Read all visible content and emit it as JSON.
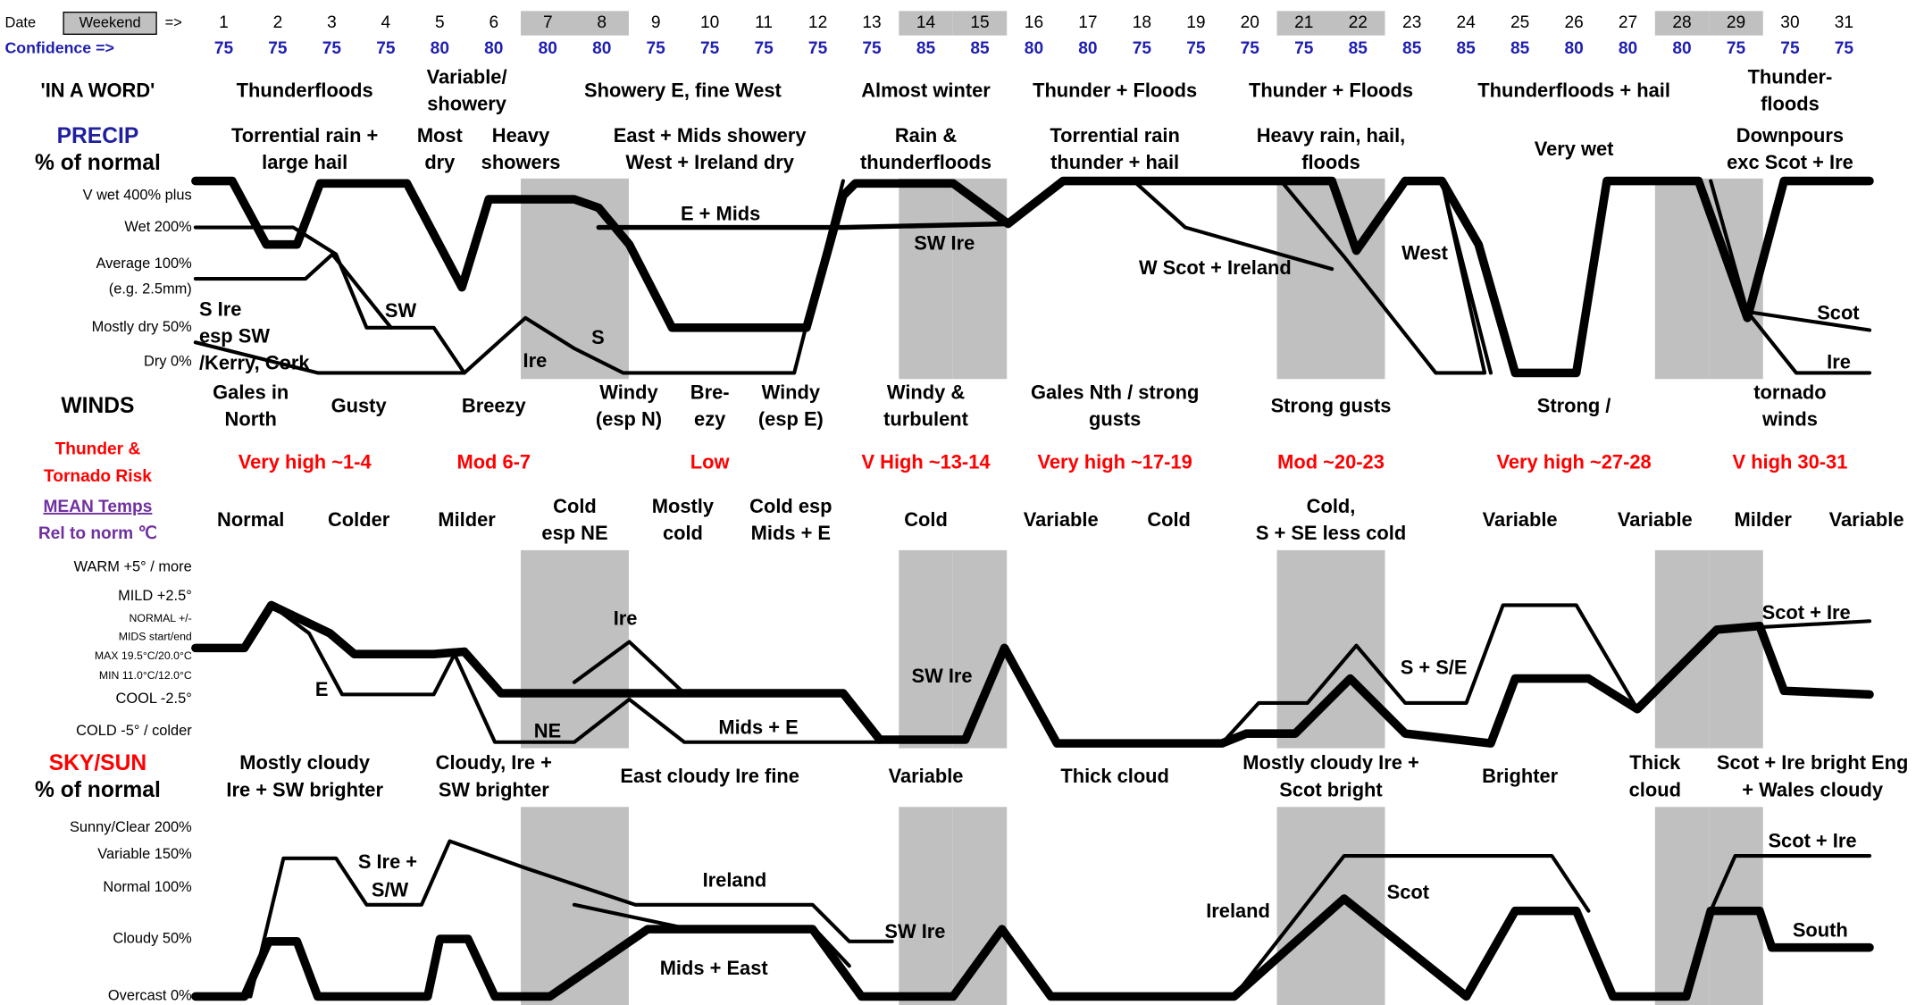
{
  "date_row": {
    "label": "Date",
    "weekend": "Weekend",
    "arrow": "=>",
    "days": [
      1,
      2,
      3,
      4,
      5,
      6,
      7,
      8,
      9,
      10,
      11,
      12,
      13,
      14,
      15,
      16,
      17,
      18,
      19,
      20,
      21,
      22,
      23,
      24,
      25,
      26,
      27,
      28,
      29,
      30,
      31
    ]
  },
  "confidence_row": {
    "label": "Confidence =>",
    "values": [
      75,
      75,
      75,
      75,
      80,
      80,
      80,
      80,
      75,
      75,
      75,
      75,
      75,
      85,
      85,
      80,
      80,
      75,
      75,
      75,
      75,
      85,
      85,
      85,
      85,
      80,
      80,
      80,
      75,
      75,
      75
    ]
  },
  "rows": [
    {
      "label": [
        "'IN A WORD'"
      ],
      "cells": [
        [
          "Thunderfloods"
        ],
        [
          "Variable/",
          "showery"
        ],
        [
          "Showery E, fine West"
        ],
        [
          "Almost winter"
        ],
        [
          "Thunder + Floods"
        ],
        [
          "Thunder + Floods"
        ],
        [
          "Thunderfloods + hail"
        ],
        [
          "Thunder-",
          "floods"
        ]
      ]
    },
    {
      "label": [
        "PRECIP",
        "% of normal"
      ],
      "cells": [
        [
          "Torrential rain +",
          "large hail"
        ],
        [
          "Most",
          "dry"
        ],
        [
          "Heavy",
          "showers"
        ],
        [
          "East + Mids showery",
          "West + Ireland dry"
        ],
        [
          "Rain &",
          "thunderfloods"
        ],
        [
          "Torrential rain",
          "thunder + hail"
        ],
        [
          "Heavy rain, hail,",
          "floods"
        ],
        [
          "Very wet"
        ],
        [
          "Downpours",
          "exc Scot + Ire"
        ]
      ]
    },
    {
      "label": [
        "WINDS"
      ],
      "cells": [
        [
          "Gales in",
          "North"
        ],
        [
          "Gusty"
        ],
        [
          "Breezy"
        ],
        [
          "Windy",
          "(esp N)"
        ],
        [
          "Bre-",
          "ezy"
        ],
        [
          "Windy",
          "(esp E)"
        ],
        [
          "Windy &",
          "turbulent"
        ],
        [
          "Gales Nth / strong",
          "gusts"
        ],
        [
          "Strong gusts"
        ],
        [
          "Strong /"
        ],
        [
          "tornado",
          "winds"
        ]
      ]
    },
    {
      "label": [
        "Thunder &",
        "Tornado Risk"
      ],
      "cells": [
        [
          "Very high ~1-4"
        ],
        [
          "Mod 6-7"
        ],
        [
          "Low"
        ],
        [
          "V High ~13-14"
        ],
        [
          "Very high ~17-19"
        ],
        [
          "Mod ~20-23"
        ],
        [
          "Very high ~27-28"
        ],
        [
          "V high 30-31"
        ]
      ]
    },
    {
      "label": [
        "MEAN Temps",
        "Rel to norm ℃"
      ],
      "cells": [
        [
          "Normal"
        ],
        [
          "Colder"
        ],
        [
          "Milder"
        ],
        [
          "Cold",
          "esp NE"
        ],
        [
          "Mostly",
          "cold"
        ],
        [
          "Cold esp",
          "Mids + E"
        ],
        [
          "Cold"
        ],
        [
          "Variable"
        ],
        [
          "Cold"
        ],
        [
          "Cold,",
          "S + SE less cold"
        ],
        [
          "Variable"
        ],
        [
          "Variable"
        ],
        [
          "Milder"
        ],
        [
          "Variable"
        ]
      ]
    },
    {
      "label": [
        "SKY/SUN",
        "% of normal"
      ],
      "cells": [
        [
          "Mostly cloudy",
          "Ire + SW brighter"
        ],
        [
          "Cloudy,  Ire +",
          "SW brighter"
        ],
        [
          "East cloudy Ire fine"
        ],
        [
          "Variable"
        ],
        [
          "Thick cloud"
        ],
        [
          "Mostly cloudy Ire +",
          "Scot bright"
        ],
        [
          "Brighter"
        ],
        [
          "Thick",
          "cloud"
        ],
        [
          "Scot + Ire bright Eng",
          "+ Wales cloudy"
        ]
      ]
    }
  ],
  "charts": [
    {
      "axis_labels": [
        "V wet 400% plus",
        "Wet 200%",
        "Average 100%",
        "(e.g. 2.5mm)",
        "Mostly dry 50%",
        "Dry 0%"
      ],
      "annotations": [
        "S Ire",
        "esp SW",
        "/Kerry, Cork",
        "SW",
        "Ire",
        "S",
        "E + Mids",
        "SW Ire",
        "W Scot + Ireland",
        "West",
        "Scot",
        "Ire"
      ]
    },
    {
      "axis_labels": [
        "WARM +5° / more",
        "MILD +2.5°",
        "NORMAL +/-",
        "MIDS start/end",
        "MAX 19.5°C/20.0°C",
        "MIN 11.0°C/12.0°C",
        "COOL -2.5°",
        "COLD -5° / colder"
      ],
      "annotations": [
        "E",
        "Ire",
        "NE",
        "Mids + E",
        "SW Ire",
        "S + S/E",
        "Scot + Ire"
      ]
    },
    {
      "axis_labels": [
        "Sunny/Clear 200%",
        "Variable 150%",
        "Normal 100%",
        "Cloudy 50%",
        "Overcast 0%"
      ],
      "annotations": [
        "S Ire +",
        "S/W",
        "Ireland",
        "Mids + East",
        "SW Ire",
        "Ireland",
        "Scot",
        "Scot + Ire",
        "South"
      ]
    }
  ]
}
